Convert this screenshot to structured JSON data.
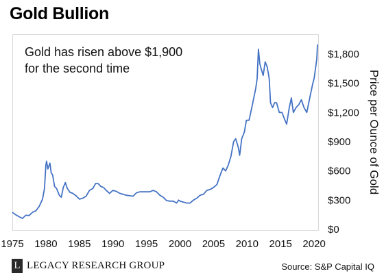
{
  "title": "Gold Bullion",
  "annotation": {
    "line1": "Gold has risen above $1,900",
    "line2": "for the second time"
  },
  "ylabel": "Price per Ounce of Gold",
  "source": "Source: S&P Capital IQ",
  "brand": {
    "mark": "L",
    "name": "LEGACY RESEARCH GROUP"
  },
  "colors": {
    "line": "#4472c4",
    "frame": "#d9d9d9"
  },
  "chart_data": {
    "type": "line",
    "title": "Gold Bullion",
    "xlabel": "",
    "ylabel": "Price per Ounce of Gold",
    "xlim": [
      1975,
      2020.5
    ],
    "ylim": [
      0,
      1900
    ],
    "x_ticks": [
      1975,
      1980,
      1985,
      1990,
      1995,
      2000,
      2005,
      2010,
      2015,
      2020
    ],
    "x_tick_labels": [
      "1975",
      "1980",
      "1985",
      "1990",
      "1995",
      "2000",
      "2005",
      "2010",
      "2015",
      "2020"
    ],
    "y_ticks": [
      0,
      300,
      600,
      900,
      1200,
      1500,
      1800
    ],
    "y_tick_labels": [
      "$0",
      "$300",
      "$600",
      "$900",
      "$1,200",
      "$1,500",
      "$1,800"
    ],
    "grid": false,
    "legend": "none",
    "series": [
      {
        "x": [
          1975.0,
          1975.5,
          1976.0,
          1976.5,
          1977.0,
          1977.5,
          1978.0,
          1978.5,
          1979.0,
          1979.5,
          1979.8,
          1980.0,
          1980.1,
          1980.3,
          1980.6,
          1980.8,
          1981.0,
          1981.3,
          1981.6,
          1982.0,
          1982.3,
          1982.6,
          1982.9,
          1983.2,
          1983.6,
          1984.0,
          1984.5,
          1985.0,
          1985.5,
          1986.0,
          1986.5,
          1987.0,
          1987.4,
          1987.8,
          1988.2,
          1988.6,
          1989.0,
          1989.5,
          1990.0,
          1990.5,
          1991.0,
          1991.5,
          1992.0,
          1992.5,
          1993.0,
          1993.5,
          1994.0,
          1994.5,
          1995.0,
          1995.5,
          1996.0,
          1996.5,
          1997.0,
          1997.5,
          1998.0,
          1998.5,
          1999.0,
          1999.5,
          1999.8,
          2000.0,
          2000.5,
          2001.0,
          2001.5,
          2002.0,
          2002.5,
          2003.0,
          2003.5,
          2004.0,
          2004.5,
          2005.0,
          2005.5,
          2006.0,
          2006.4,
          2006.8,
          2007.2,
          2007.6,
          2008.0,
          2008.3,
          2008.7,
          2008.9,
          2009.2,
          2009.6,
          2009.9,
          2010.3,
          2010.7,
          2011.0,
          2011.3,
          2011.5,
          2011.7,
          2011.9,
          2012.1,
          2012.4,
          2012.7,
          2013.0,
          2013.3,
          2013.5,
          2013.8,
          2014.1,
          2014.4,
          2014.8,
          2015.2,
          2015.6,
          2015.9,
          2016.3,
          2016.6,
          2016.9,
          2017.3,
          2017.7,
          2018.1,
          2018.5,
          2018.9,
          2019.2,
          2019.5,
          2019.8,
          2020.0,
          2020.2,
          2020.4,
          2020.5
        ],
        "y": [
          175,
          150,
          130,
          112,
          145,
          142,
          175,
          190,
          235,
          310,
          420,
          660,
          700,
          620,
          680,
          580,
          560,
          440,
          420,
          350,
          330,
          430,
          480,
          420,
          380,
          370,
          345,
          310,
          320,
          340,
          400,
          420,
          470,
          470,
          440,
          430,
          400,
          370,
          400,
          390,
          370,
          360,
          350,
          345,
          340,
          375,
          385,
          385,
          385,
          385,
          400,
          385,
          350,
          330,
          295,
          290,
          290,
          270,
          300,
          290,
          280,
          270,
          270,
          300,
          320,
          350,
          360,
          400,
          410,
          430,
          460,
          560,
          630,
          600,
          660,
          750,
          900,
          930,
          840,
          760,
          930,
          1000,
          1120,
          1120,
          1250,
          1350,
          1450,
          1550,
          1850,
          1700,
          1650,
          1580,
          1720,
          1670,
          1550,
          1300,
          1250,
          1300,
          1300,
          1200,
          1200,
          1130,
          1080,
          1250,
          1350,
          1200,
          1250,
          1280,
          1330,
          1250,
          1200,
          1300,
          1400,
          1500,
          1550,
          1650,
          1750,
          1900
        ]
      }
    ]
  }
}
